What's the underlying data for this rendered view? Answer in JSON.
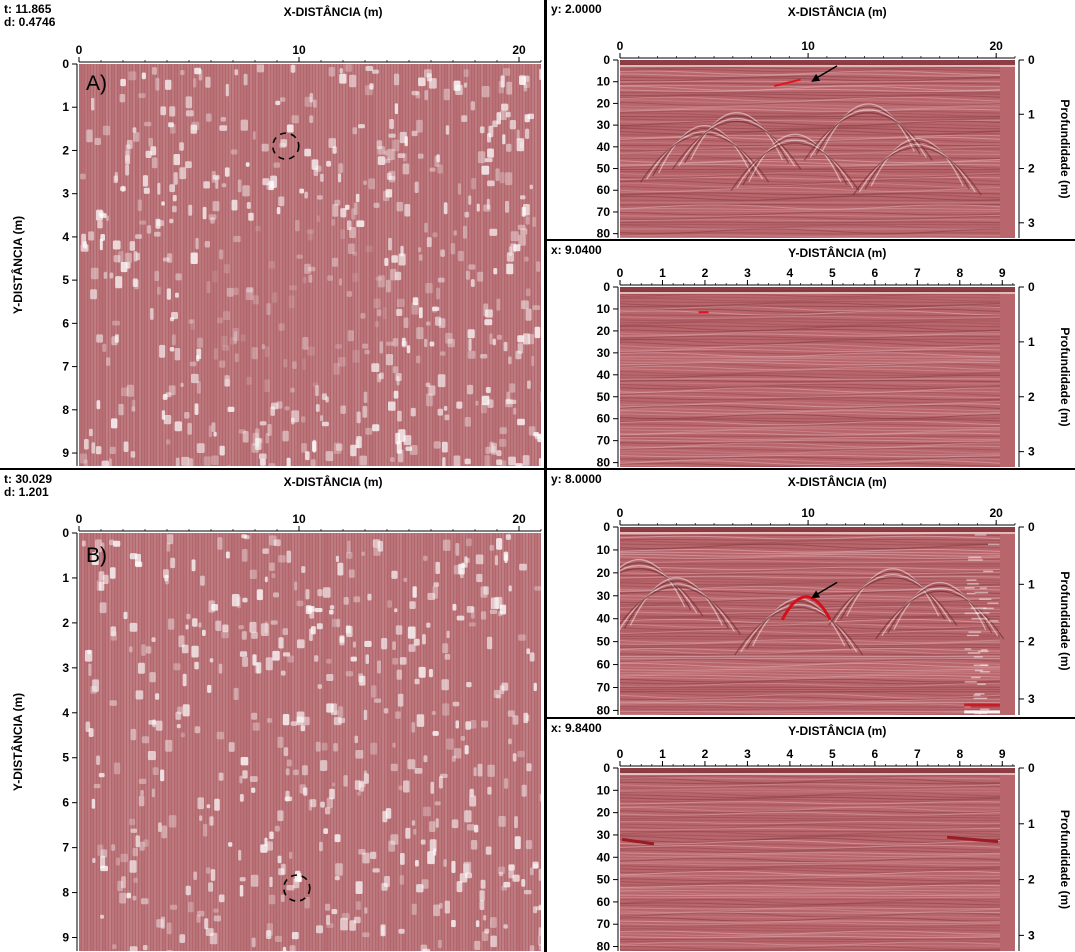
{
  "colors": {
    "background": "#ffffff",
    "slice_base": "#b3676d",
    "section_base": "#b8656b",
    "axis": "#000000"
  },
  "chart_data": [
    {
      "type": "heatmap",
      "panel_tag": "A)",
      "readouts": [
        "t: 11.865",
        "d: 0.4746"
      ],
      "xlabel": "X-DISTÂNCIA (m)",
      "ylabel": "Y-DISTÂNCIA (m)",
      "xlim": [
        0,
        21
      ],
      "ylim": [
        0,
        9.3
      ],
      "xticks": [
        "0",
        "10",
        "20"
      ],
      "yticks": [
        "0",
        "1",
        "2",
        "3",
        "4",
        "5",
        "6",
        "7",
        "8",
        "9"
      ],
      "markers": [
        {
          "shape": "dashed-circle",
          "x": 9.4,
          "y": 1.9
        }
      ]
    },
    {
      "type": "heatmap",
      "readouts": [
        "y: 2.0000"
      ],
      "xlabel": "X-DISTÂNCIA (m)",
      "y2label": "Profundidade (m)",
      "xlim": [
        0,
        21
      ],
      "ylim": [
        0,
        82
      ],
      "y2lim": [
        0,
        3.28
      ],
      "xticks": [
        "0",
        "10",
        "20"
      ],
      "yticks": [
        "0",
        "10",
        "20",
        "30",
        "40",
        "50",
        "60",
        "70",
        "80"
      ],
      "y2ticks": [
        "0",
        "1",
        "2",
        "3"
      ],
      "annotations": [
        {
          "shape": "arrow",
          "x": 10,
          "y": 11
        }
      ]
    },
    {
      "type": "heatmap",
      "readouts": [
        "x: 9.0400"
      ],
      "xlabel": "Y-DISTÂNCIA (m)",
      "y2label": "Profundidade (m)",
      "xlim": [
        0,
        9.3
      ],
      "ylim": [
        0,
        82
      ],
      "y2lim": [
        0,
        3.28
      ],
      "xticks": [
        "0",
        "1",
        "2",
        "3",
        "4",
        "5",
        "6",
        "7",
        "8",
        "9"
      ],
      "yticks": [
        "0",
        "10",
        "20",
        "30",
        "40",
        "50",
        "60",
        "70",
        "80"
      ],
      "y2ticks": [
        "0",
        "1",
        "2",
        "3"
      ]
    },
    {
      "type": "heatmap",
      "panel_tag": "B)",
      "readouts": [
        "t: 30.029",
        "d: 1.201"
      ],
      "xlabel": "X-DISTÂNCIA (m)",
      "ylabel": "Y-DISTÂNCIA (m)",
      "xlim": [
        0,
        21
      ],
      "ylim": [
        0,
        9.3
      ],
      "xticks": [
        "0",
        "10",
        "20"
      ],
      "yticks": [
        "0",
        "1",
        "2",
        "3",
        "4",
        "5",
        "6",
        "7",
        "8",
        "9"
      ],
      "markers": [
        {
          "shape": "dashed-circle",
          "x": 9.9,
          "y": 7.9
        }
      ]
    },
    {
      "type": "heatmap",
      "readouts": [
        "y: 8.0000"
      ],
      "xlabel": "X-DISTÂNCIA (m)",
      "y2label": "Profundidade (m)",
      "xlim": [
        0,
        21
      ],
      "ylim": [
        0,
        82
      ],
      "y2lim": [
        0,
        3.28
      ],
      "xticks": [
        "0",
        "10",
        "20"
      ],
      "yticks": [
        "0",
        "10",
        "20",
        "30",
        "40",
        "50",
        "60",
        "70",
        "80"
      ],
      "y2ticks": [
        "0",
        "1",
        "2",
        "3"
      ],
      "annotations": [
        {
          "shape": "arrow",
          "x": 10,
          "y": 32
        }
      ]
    },
    {
      "type": "heatmap",
      "readouts": [
        "x: 9.8400"
      ],
      "xlabel": "Y-DISTÂNCIA (m)",
      "y2label": "Profundidade (m)",
      "xlim": [
        0,
        9.3
      ],
      "ylim": [
        0,
        82
      ],
      "y2lim": [
        0,
        3.28
      ],
      "xticks": [
        "0",
        "1",
        "2",
        "3",
        "4",
        "5",
        "6",
        "7",
        "8",
        "9"
      ],
      "yticks": [
        "0",
        "10",
        "20",
        "30",
        "40",
        "50",
        "60",
        "70",
        "80"
      ],
      "y2ticks": [
        "0",
        "1",
        "2",
        "3"
      ]
    }
  ]
}
